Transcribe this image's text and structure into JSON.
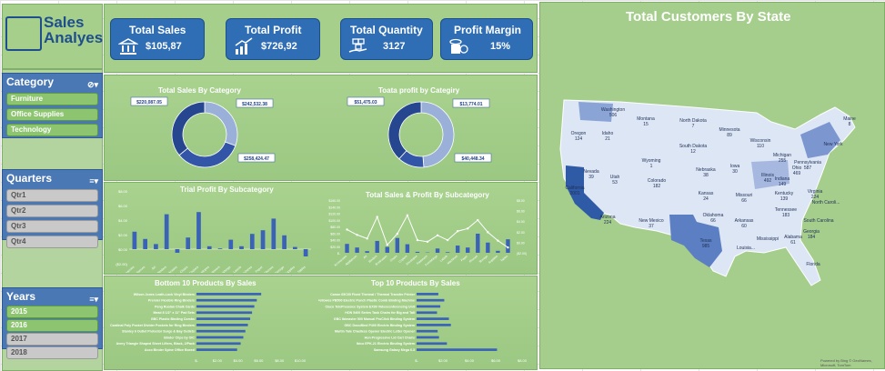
{
  "app": {
    "title_line1": "Sales",
    "title_line2": "Analyes"
  },
  "slicers": {
    "category": {
      "label": "Category",
      "items": [
        "Furniture",
        "Office Supplies",
        "Technology"
      ]
    },
    "quarters": {
      "label": "Quarters",
      "items": [
        "Qtr1",
        "Qtr2",
        "Qtr3",
        "Qtr4"
      ]
    },
    "years": {
      "label": "Years",
      "items": [
        "2015",
        "2016",
        "2017",
        "2018"
      ]
    }
  },
  "kpis": {
    "total_sales": {
      "title": "Total Sales",
      "value": "$105,87"
    },
    "total_profit": {
      "title": "Total Profit",
      "value": "$726,92"
    },
    "total_quantity": {
      "title": "Total Quantity",
      "value": "3127"
    },
    "profit_margin": {
      "title": "Profit Margin",
      "value": "15%"
    }
  },
  "map": {
    "title": "Total Customers By State",
    "states": [
      {
        "name": "Washington",
        "value": "506"
      },
      {
        "name": "Oregon",
        "value": "124"
      },
      {
        "name": "Idaho",
        "value": "21"
      },
      {
        "name": "Montana",
        "value": "15"
      },
      {
        "name": "North Dakota",
        "value": "7"
      },
      {
        "name": "Minnesota",
        "value": "89"
      },
      {
        "name": "Wisconsin",
        "value": "110"
      },
      {
        "name": "Michigan",
        "value": "255"
      },
      {
        "name": "New York",
        "value": ""
      },
      {
        "name": "Maine",
        "value": "8"
      },
      {
        "name": "South Dakota",
        "value": "12"
      },
      {
        "name": "Wyoming",
        "value": "1"
      },
      {
        "name": "Nevada",
        "value": "39"
      },
      {
        "name": "Utah",
        "value": "53"
      },
      {
        "name": "Nebraska",
        "value": "38"
      },
      {
        "name": "Iowa",
        "value": "30"
      },
      {
        "name": "Illinois",
        "value": "492"
      },
      {
        "name": "Indiana",
        "value": "149"
      },
      {
        "name": "Ohio",
        "value": "469"
      },
      {
        "name": "Pennsylvania",
        "value": "587"
      },
      {
        "name": "California",
        "value": "2001"
      },
      {
        "name": "Colorado",
        "value": "182"
      },
      {
        "name": "Kansas",
        "value": "24"
      },
      {
        "name": "Missouri",
        "value": "66"
      },
      {
        "name": "Kentucky",
        "value": "139"
      },
      {
        "name": "Virginia",
        "value": "224"
      },
      {
        "name": "North Caroli...",
        "value": ""
      },
      {
        "name": "Arizona",
        "value": "224"
      },
      {
        "name": "New Mexico",
        "value": "37"
      },
      {
        "name": "Oklahoma",
        "value": "66"
      },
      {
        "name": "Arkansas",
        "value": "60"
      },
      {
        "name": "Tennessee",
        "value": "183"
      },
      {
        "name": "South Carolina",
        "value": ""
      },
      {
        "name": "Mississippi",
        "value": ""
      },
      {
        "name": "Alabama",
        "value": "61"
      },
      {
        "name": "Georgia",
        "value": "184"
      },
      {
        "name": "Texas",
        "value": "985"
      },
      {
        "name": "Louisia...",
        "value": ""
      },
      {
        "name": "Florida",
        "value": ""
      }
    ],
    "footer": "Powered by Bing © GeoNames, Microsoft, TomTom"
  },
  "chart_data": [
    {
      "type": "pie",
      "title": "Total Sales By Category",
      "categories": [
        "Furniture",
        "Office Supplies",
        "Technology"
      ],
      "values": [
        220087.05,
        242532.38,
        258424.47
      ],
      "labels": [
        "$220,087.05",
        "$242,532.38",
        "$258,424.47"
      ]
    },
    {
      "type": "pie",
      "title": "Toata profit by Categiry",
      "categories": [
        "Furniture",
        "Office Supplies",
        "Technology"
      ],
      "values": [
        51475.03,
        13774.01,
        40448.34
      ],
      "labels": [
        "$51,475.03",
        "$13,774.01",
        "$40,448.34"
      ]
    },
    {
      "type": "bar",
      "title": "Trial  Profit By Subcategory",
      "yticks": [
        "$8.00",
        "$6.00",
        "$4.00",
        "$2.00",
        "$0.00",
        "($2.00)"
      ],
      "categories": [
        "Accessories",
        "Appliances",
        "Art",
        "Binders",
        "Bookcases",
        "Chairs",
        "Copiers",
        "Envelopes",
        "Fasteners",
        "Furnishings",
        "Labels",
        "Machines",
        "Paper",
        "Phones",
        "Storage",
        "Supplies",
        "Tables"
      ],
      "values": [
        2.4,
        1.4,
        0.7,
        4.8,
        -0.5,
        1.6,
        5.1,
        0.4,
        0.1,
        1.3,
        0.4,
        2.1,
        2.6,
        4.2,
        1.9,
        0.3,
        -1.0
      ],
      "ylim": [
        -2,
        8
      ]
    },
    {
      "type": "bar",
      "title": "Total Sales & Profit By Subcategory",
      "yticks": [
        "$160.00",
        "$140.00",
        "$120.00",
        "$100.00",
        "$80.00",
        "$60.00",
        "$40.00",
        "$20.00",
        "$-"
      ],
      "y2ticks": [
        "$8.00",
        "$6.00",
        "$4.00",
        "$2.00",
        "$0.00",
        "($2.00)"
      ],
      "categories": [
        "Accessories",
        "Appliances",
        "Art",
        "Binders",
        "Bookcases",
        "Chairs",
        "Copiers",
        "Envelopes",
        "Fasteners",
        "Furnishings",
        "Labels",
        "Machines",
        "Paper",
        "Phones",
        "Storage",
        "Supplies",
        "Tables"
      ],
      "series": [
        {
          "values": [
            27,
            16,
            5,
            36,
            18,
            45,
            26,
            3,
            1,
            13,
            2,
            22,
            16,
            58,
            31,
            6,
            41
          ]
        },
        {
          "values": [
            2.4,
            1.4,
            0.7,
            4.8,
            -0.5,
            1.6,
            5.1,
            0.4,
            0.1,
            1.3,
            0.4,
            2.1,
            2.6,
            4.2,
            1.9,
            0.3,
            -1.0
          ]
        }
      ],
      "ylim": [
        0,
        160
      ]
    },
    {
      "type": "bar",
      "title": "Bottom 10 Products By Sales",
      "categories": [
        "Wilson Jones Leath-Lock Vinyl Binders",
        "Premier Flexible Ring Binders",
        "Peng Ruolan Chalk Cards",
        "Mead 8 1/2\" x 11\" Pad Sets",
        "GBC Plastic Binding Combs",
        "Cardinal Poly Pocket Divider Pockets for Ring Binders",
        "Stanley 6 Outlet Protector Surge & Bay Outlets",
        "Binder Clips by OIC",
        "Avery Triangle Shaped Sheet Lifters, Black, 2/Pack",
        "Acco Binder Spine Office Boxed"
      ],
      "values": [
        6.24,
        5.82,
        5.58,
        5.36,
        5.18,
        4.96,
        4.72,
        4.52,
        4.26,
        3.92
      ],
      "xticks": [
        "$-",
        "$2.00",
        "$4.00",
        "$6.00",
        "$8.00",
        "$10.00"
      ],
      "xlim": [
        0,
        10
      ]
    },
    {
      "type": "bar",
      "title": "Top 10 Products By Sales",
      "categories": [
        "Canon 65C00 Fixed Thermal / Thermal Transfer Printer",
        "Fellowes PB500 Electric Punch Plastic Comb Binding Machine",
        "Cisco TelePresence System EX90 Videoconferencing Unit",
        "HON 5400 Series Task Chairs for Big and Tall",
        "GBC Ibimaster 500 Manual ProClick Binding System",
        "GBC DocuBind P400 Electric Binding System",
        "Martin Yale Chadless Opener Electric Letter Opener",
        "Hon Progressive Lid Cart Chairs",
        "Ibico EPK-21 Electric Binding System",
        "Samsung Galaxy Mega 6.3"
      ],
      "values": [
        1.65,
        2.1,
        1.8,
        1.55,
        2.45,
        2.6,
        1.6,
        1.7,
        2.3,
        6.1
      ],
      "xticks": [
        "$-",
        "$2.00",
        "$4.00",
        "$6.00",
        "$8.00"
      ],
      "xlim": [
        0,
        8
      ]
    }
  ],
  "colors": {
    "accent": "#2f6db5",
    "panel": "#a6cf8b",
    "bar": "#3a63b8",
    "donut_light": "#9ab0d8"
  }
}
